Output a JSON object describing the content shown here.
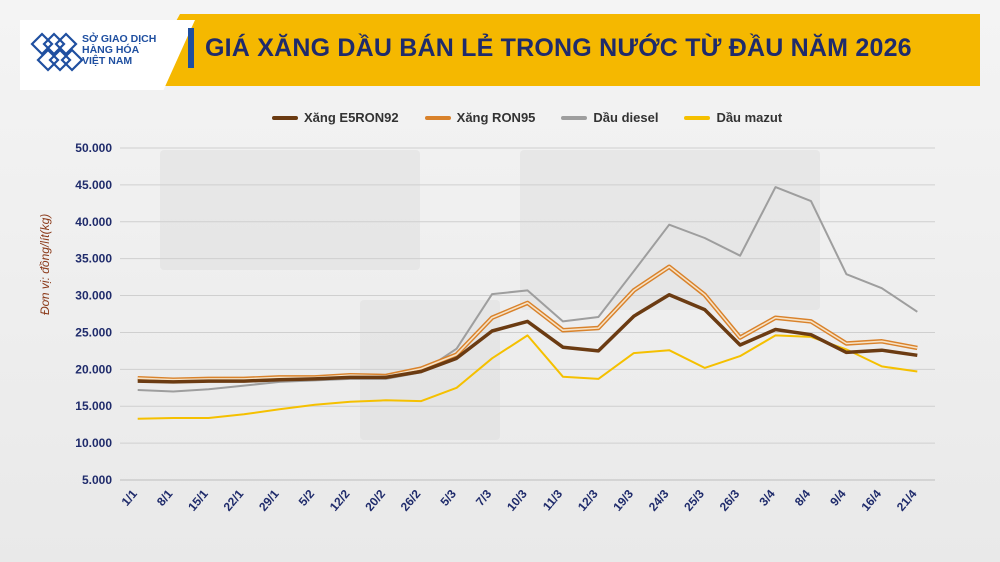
{
  "header": {
    "title": "GIÁ XĂNG DẦU BÁN LẺ TRONG NƯỚC TỪ ĐẦU NĂM 2026",
    "logo_lines": [
      "SỞ GIAO DỊCH",
      "HÀNG HÓA",
      "VIỆT NAM"
    ]
  },
  "colors": {
    "header_band": "#f5b800",
    "title": "#1f2b6b",
    "e5": "#6b3b12",
    "ron95": "#d9822b",
    "diesel": "#9e9e9e",
    "mazut": "#f5c000"
  },
  "chart_data": {
    "type": "line",
    "title": "GIÁ XĂNG DẦU BÁN LẺ TRONG NƯỚC TỪ ĐẦU NĂM 2026",
    "xlabel": "",
    "ylabel": "Đơn vị: đồng/lít(kg)",
    "ylim": [
      5000,
      50000
    ],
    "yticks": [
      "5.000",
      "10.000",
      "15.000",
      "20.000",
      "25.000",
      "30.000",
      "35.000",
      "40.000",
      "45.000",
      "50.000"
    ],
    "ytick_values": [
      5000,
      10000,
      15000,
      20000,
      25000,
      30000,
      35000,
      40000,
      45000,
      50000
    ],
    "grid": true,
    "legend_position": "top",
    "categories": [
      "1/1",
      "8/1",
      "15/1",
      "22/1",
      "29/1",
      "5/2",
      "12/2",
      "20/2",
      "26/2",
      "5/3",
      "7/3",
      "10/3",
      "11/3",
      "12/3",
      "19/3",
      "24/3",
      "25/3",
      "26/3",
      "3/4",
      "8/4",
      "9/4",
      "16/4",
      "21/4"
    ],
    "series": [
      {
        "name": "Xăng E5RON92",
        "color": "#6b3b12",
        "values": [
          18400,
          18300,
          18400,
          18400,
          18600,
          18700,
          18900,
          18900,
          19700,
          21500,
          25200,
          26500,
          23000,
          22500,
          27200,
          30100,
          28100,
          23300,
          25400,
          24700,
          22300,
          22600,
          21900
        ]
      },
      {
        "name": "Xăng RON95",
        "color": "#d9822b",
        "values": [
          18800,
          18600,
          18700,
          18700,
          18900,
          18900,
          19200,
          19100,
          20100,
          22000,
          27000,
          29000,
          25300,
          25600,
          30700,
          33900,
          30100,
          24300,
          27000,
          26500,
          23500,
          23800,
          22900
        ]
      },
      {
        "name": "Dầu diesel",
        "color": "#9e9e9e",
        "values": [
          17200,
          17000,
          17300,
          17800,
          18300,
          18500,
          18700,
          18700,
          19600,
          22800,
          30200,
          30700,
          26500,
          27100,
          33300,
          39600,
          37800,
          35400,
          44700,
          42800,
          32900,
          31000,
          27800
        ]
      },
      {
        "name": "Dầu mazut",
        "color": "#f5c000",
        "values": [
          13300,
          13400,
          13400,
          13900,
          14600,
          15200,
          15600,
          15800,
          15700,
          17500,
          21500,
          24600,
          19000,
          18700,
          22200,
          22600,
          20200,
          21800,
          24600,
          24400,
          22700,
          20400,
          19700
        ]
      }
    ]
  }
}
